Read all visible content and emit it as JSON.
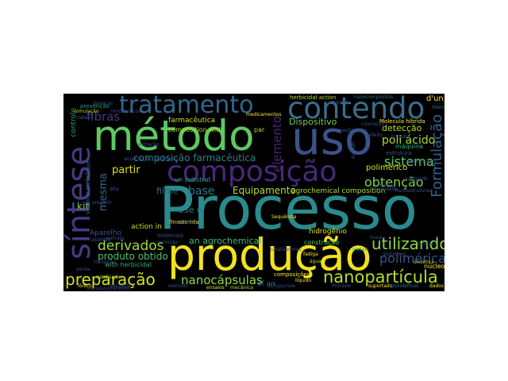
{
  "words": {
    "processo": "Processo",
    "producao": "produção",
    "metodo": "método",
    "uso": "uso",
    "contendo": "contendo",
    "composicao": "composição",
    "tratamento": "tratamento",
    "sintese": "síntese",
    "preparacao": "preparação",
    "nanoparticula": "nanopartícula",
    "nanocapsulas": "nanocápsulas",
    "derivados": "derivados",
    "utilizando": "utilizando",
    "polimerica": "polimérica",
    "formulacao": "Formulação",
    "sistema": "sistema",
    "obtencao": "obtenção",
    "partir": "partir",
    "fibras": "fibras",
    "mesma": "mesma",
    "poli_acido": "poli ácido",
    "deteccao": "detecção",
    "dispositivo": "Dispositivo",
    "produto_obtido": "produto obtido",
    "base": "base",
    "equipamento": "Equipamento",
    "kit": "kit",
    "filme": "filme",
    "agrochemical_composition": "agrochemical composition",
    "an_agrochemical": "an agrochemical",
    "composicao_farmaceutica": "composição farmacêutica",
    "farmaceutica": "farmacêutica",
    "composition_with": "composition with",
    "herbicidal_action": "herbicidal action",
    "use_of": "Use of",
    "action_in": "action in",
    "with_herbicidal": "with herbicidal",
    "elemento": "elemento",
    "polimerico": "polimérico",
    "hidrogenio": "hidrogênio",
    "construcao": "construção",
    "molecula_hibrida": "Molecula híbrida",
    "dun": "d'un",
    "controle": "controle",
    "prevencao": "prevenção",
    "substrat_metallique": "substrat métallique",
    "un_substrat": "un substrat",
    "aparelho": "Aparelho",
    "finasterida": "finasterida",
    "par": "par",
    "de": "de",
    "estrutura": "estrutura",
    "maquina": "máquina",
    "composicoes": "composições",
    "nucleos": "núcleos",
    "ionico": "iônico",
    "suportado": "suportado",
    "dados": "dados",
    "liquido": "líquido",
    "sequencia": "Sequência",
    "metais": "metais",
    "materiais": "materiais",
    "ensaios": "ensaios",
    "mecanica": "mecânica",
    "eletrodo": "eletrodo",
    "catalisador": "catalisador",
    "simulacao": "simulação",
    "doencas": "doenças",
    "medicamentos": "medicamentos",
    "nanocompositos": "nanocompósitos",
    "atraves": "através",
    "blendas": "blendas",
    "sintetica": "sintética",
    "fungos": "fungos",
    "of_an": "of an",
    "procede": "Procede",
    "poli_olefinas": "poliolefinas",
    "fadiga": "fadiga",
    "agua": "água",
    "linear": "linear",
    "densidade": "densidade",
    "integrado": "integrado",
    "usando": "usando",
    "prevenir": "prevenir",
    "transicao": "transição",
    "perda": "perda",
    "realizacao": "realização",
    "imidazolicos": "imidazólicos",
    "coloracao": "coloração",
    "extrato": "extrato",
    "aplicacao": "aplicação",
    "dita": "dita",
    "cinetica": "cinética",
    "revestimento": "revestimento",
    "nanoestruturas": "nanoestruturas",
    "polypyrrole": "polypyrrole",
    "eletroquimica": "eletroquímica",
    "forma": "forma",
    "carboidratos": "carboidratos",
    "disturbios": "distúrbios",
    "malha": "malha",
    "efeito": "efeito",
    "remocao": "remoção",
    "solo": "solo",
    "tingidos": "tingidos",
    "cabelo": "cabelo",
    "fisicoquimica": "físico química",
    "sur_un": "sur un",
    "extracao": "extração",
    "ou": "ou",
    "ensino": "ensino",
    "obtido": "obtido",
    "nucleo": "núcleo",
    "protecao": "proteção",
    "reconstrucao": "reconstrução",
    "baseada": "baseada",
    "anodizacao": "anodização",
    "bioativo": "bioativo",
    "liquidos": "líquidos",
    "ligante": "ligante",
    "metalica": "metálica",
    "catalisadores": "catalisadores",
    "eletropolymerization": "electropolymerization",
    "nanoestruturados": "nanoestruturados",
    "sinal": "sinal",
    "emissao": "emissão",
    "processamento": "processamento",
    "corrente": "corrente",
    "organicos": "orgânicos",
    "acucar": "açúcar",
    "amostra": "amostra",
    "sensor": "sensor",
    "mistura": "mistura"
  },
  "colors": {
    "background": "#000000",
    "page": "#ffffff",
    "yellow": "#fde725",
    "teal": "#21918c",
    "green": "#5ec962",
    "purple": "#440154",
    "indigo": "#3b528b"
  }
}
